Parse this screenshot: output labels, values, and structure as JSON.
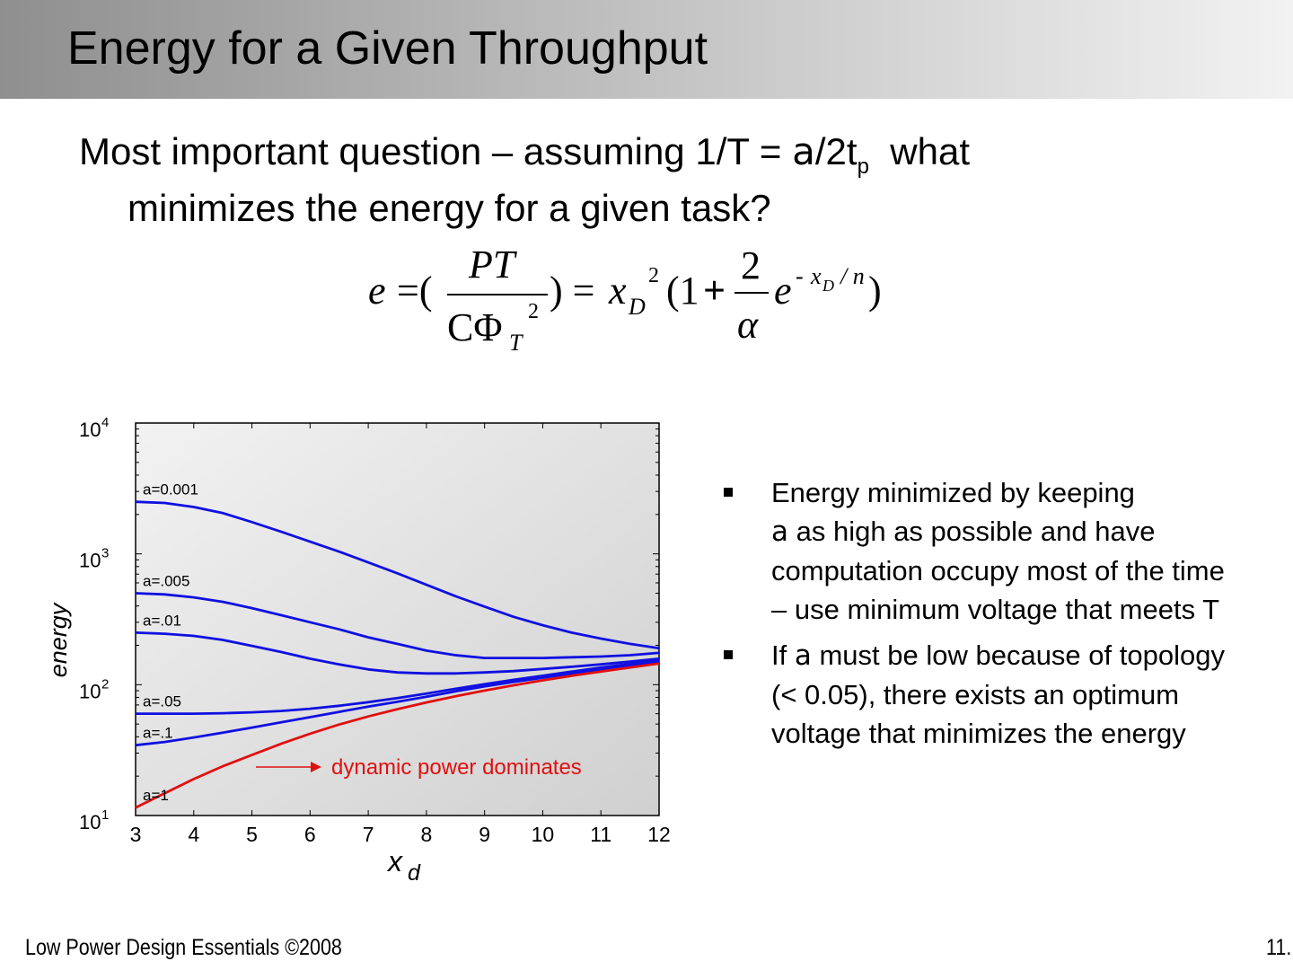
{
  "slide": {
    "title": "Energy for a Given Throughput",
    "intro_a": "Most important question – assuming 1/T = ",
    "alpha": "a",
    "intro_b": "/2t",
    "intro_sub": "p",
    "intro_c": "  what",
    "intro_line2": "minimizes the energy for a given task?"
  },
  "formula": {
    "e": "e",
    "eq1": "=(",
    "num": "PT",
    "den_c": "CΦ",
    "den_sub": "T",
    "den_sup": "2",
    "eq2": ") =",
    "x": "x",
    "x_sub": "D",
    "x_sup": "2",
    "paren_open": "(1",
    "plus": "+",
    "frac_num": "2",
    "frac_den": "α",
    "e2": "e",
    "exp_minus": "-",
    "exp_x": "x",
    "exp_sub": "D",
    "exp_rest": "/ n",
    "paren_close": ")"
  },
  "chart_data": {
    "type": "line",
    "ylabel": "energy",
    "xlabel": "x",
    "xlabel_sub": "d",
    "yscale": "log",
    "xlim": [
      3,
      12
    ],
    "ylim": [
      10,
      10000
    ],
    "x_ticks": [
      "3",
      "4",
      "5",
      "6",
      "7",
      "8",
      "9",
      "10",
      "11",
      "12"
    ],
    "y_ticks": [
      {
        "value": 10000,
        "base": "10",
        "exp": "4"
      },
      {
        "value": 1000,
        "base": "10",
        "exp": "3"
      },
      {
        "value": 100,
        "base": "10",
        "exp": "2"
      },
      {
        "value": 10,
        "base": "10",
        "exp": "1"
      }
    ],
    "x": [
      3,
      3.5,
      4,
      4.5,
      5,
      5.5,
      6,
      6.5,
      7,
      7.5,
      8,
      8.5,
      9,
      9.5,
      10,
      10.5,
      11,
      11.5,
      12
    ],
    "series": [
      {
        "name": "a=0.001",
        "color": "#1010e0",
        "values": [
          2500,
          2450,
          2280,
          2050,
          1750,
          1480,
          1240,
          1040,
          860,
          710,
          580,
          475,
          395,
          330,
          285,
          250,
          225,
          205,
          190
        ]
      },
      {
        "name": "a=.005",
        "color": "#1010e0",
        "values": [
          500,
          490,
          465,
          430,
          385,
          340,
          300,
          265,
          230,
          205,
          182,
          168,
          160,
          160,
          160,
          162,
          164,
          168,
          175
        ]
      },
      {
        "name": "a=.01",
        "color": "#1010e0",
        "values": [
          250,
          245,
          236,
          220,
          198,
          178,
          158,
          143,
          131,
          124,
          122,
          122,
          124,
          127,
          132,
          137,
          143,
          150,
          158
        ]
      },
      {
        "name": "a=.05",
        "color": "#1010e0",
        "values": [
          60,
          60,
          60,
          60.5,
          61.5,
          63,
          65.5,
          69,
          73.5,
          79,
          85.5,
          93,
          101,
          109,
          117,
          126,
          135,
          144,
          153
        ]
      },
      {
        "name": "a=.1",
        "color": "#1010e0",
        "values": [
          34.5,
          36.5,
          39.5,
          43,
          47,
          51.5,
          56.5,
          62,
          68,
          74,
          81,
          89,
          97,
          105,
          113,
          122,
          131,
          141,
          150
        ]
      },
      {
        "name": "a=1",
        "color": "#e01010",
        "values": [
          11.5,
          14.8,
          19,
          23.8,
          29,
          35.3,
          42.2,
          49.6,
          57.2,
          65,
          73.2,
          81.6,
          90.2,
          99,
          108,
          117,
          126,
          135,
          145
        ]
      }
    ],
    "annotation": {
      "text": "dynamic power dominates",
      "color": "#e01010"
    }
  },
  "bullets": [
    {
      "text": "Energy minimized by keeping",
      "alpha": "a",
      "text2": " as high as possible and have computation occupy most of the time – use minimum voltage that meets T"
    },
    {
      "text": "If ",
      "alpha": "a",
      "text2": " must be low because of topology (< 0.05), there exists an optimum voltage that minimizes the energy"
    }
  ],
  "footer": {
    "left": "Low Power Design Essentials ©2008",
    "right": "11."
  }
}
